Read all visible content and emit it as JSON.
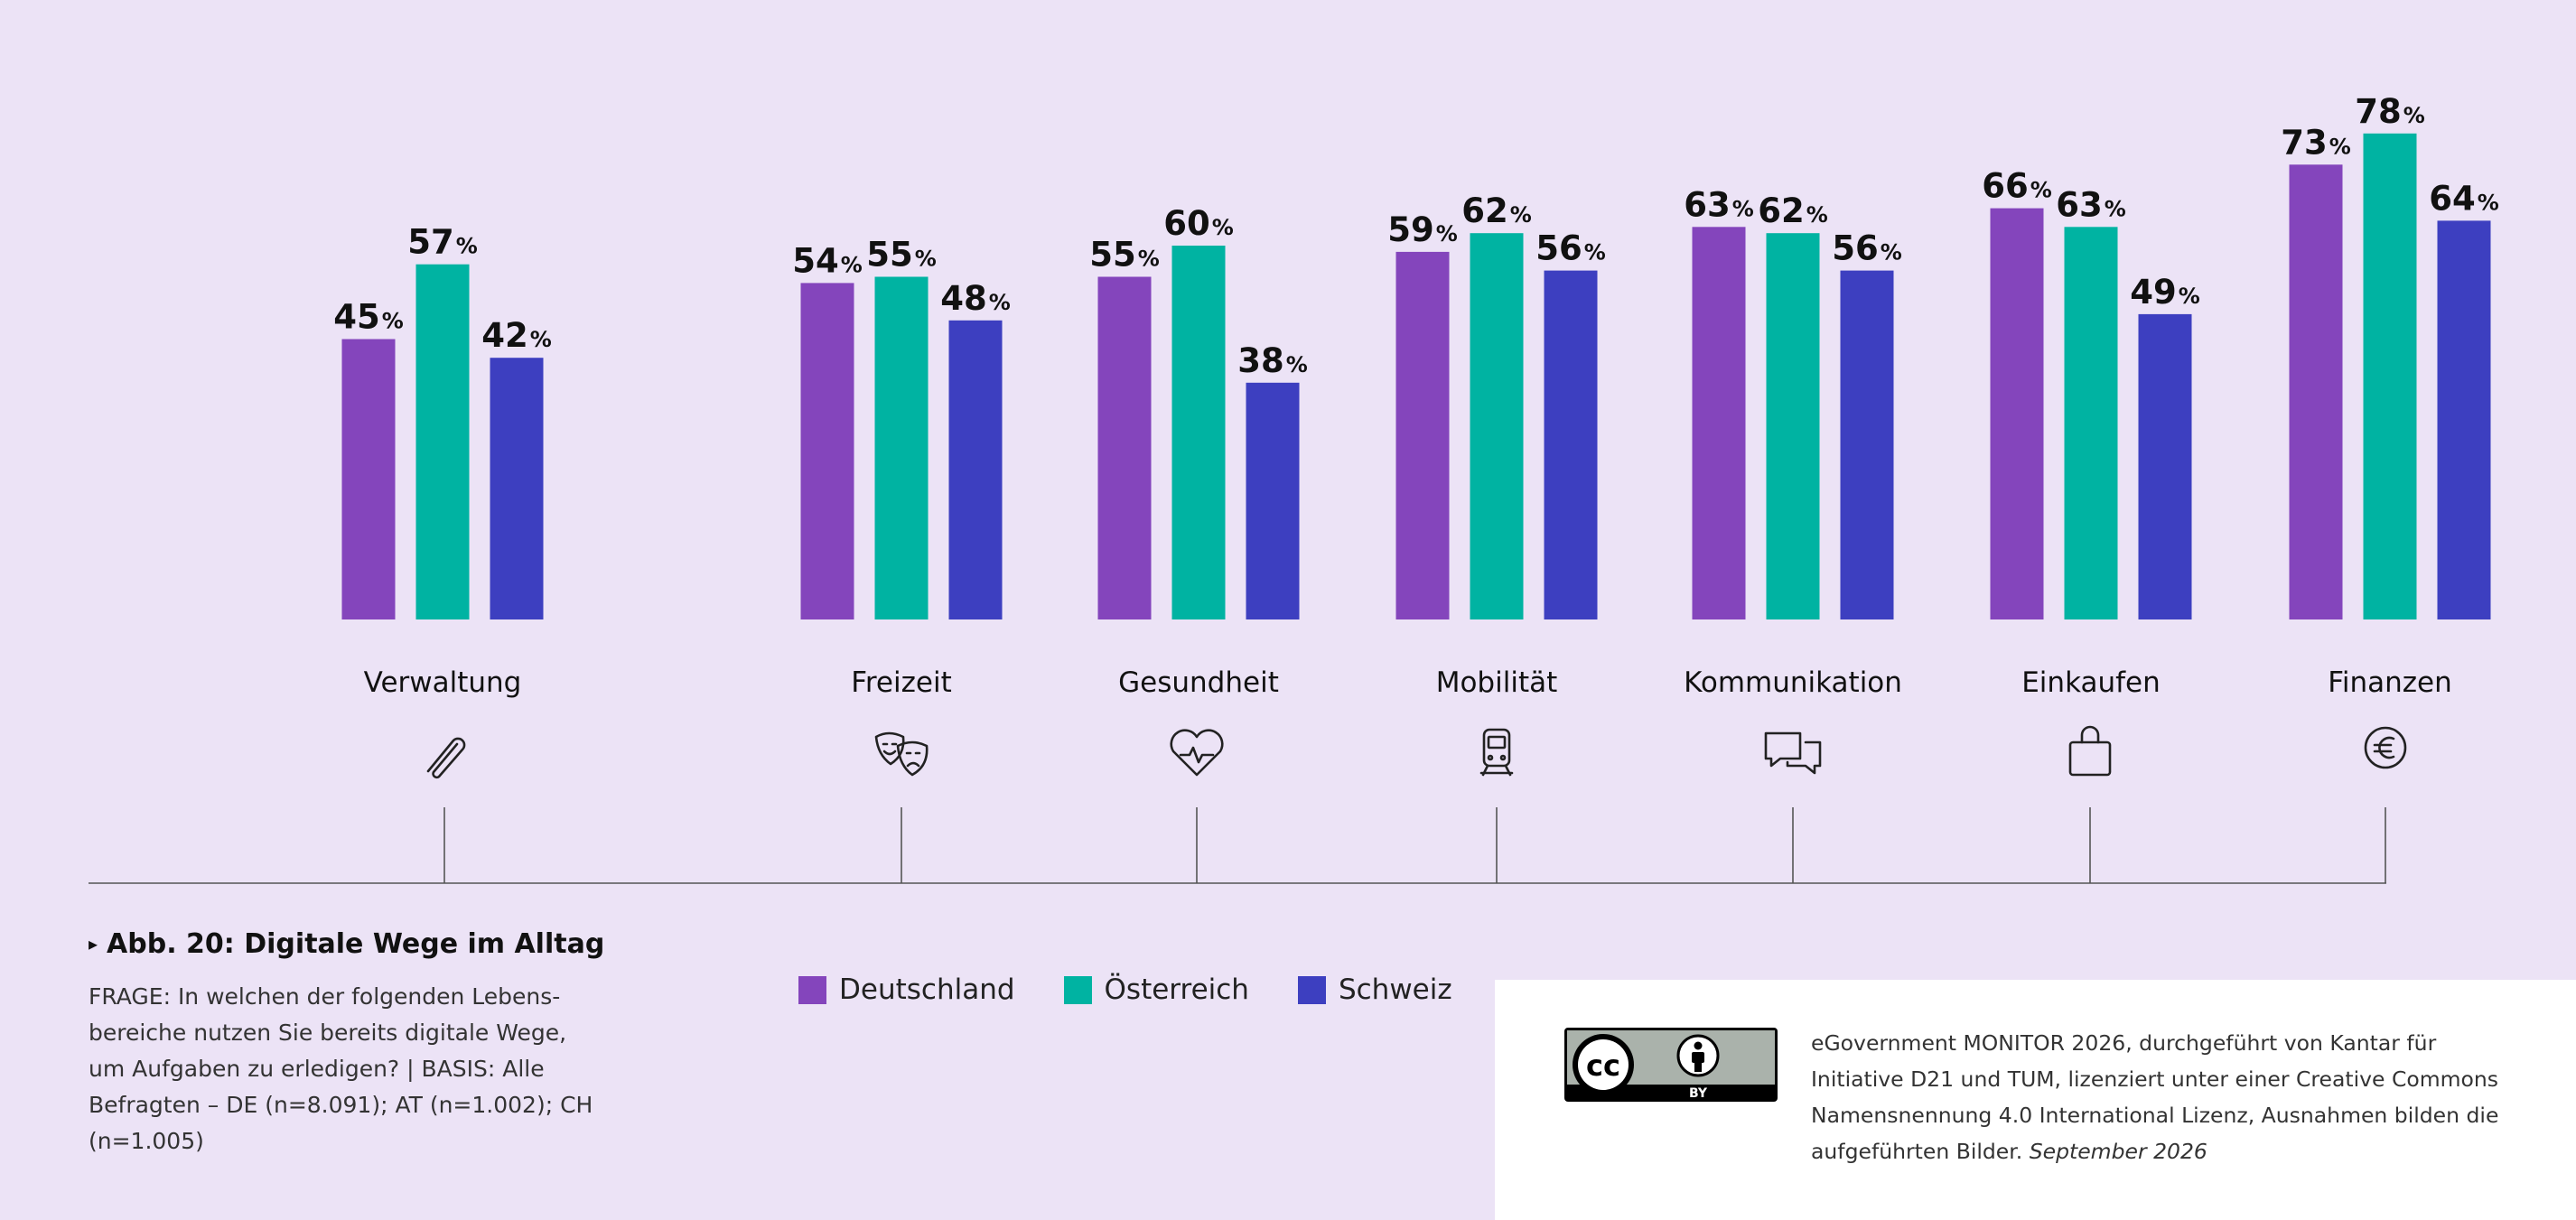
{
  "chart_data": {
    "type": "bar",
    "categories": [
      "Verwaltung",
      "Freizeit",
      "Gesundheit",
      "Mobilität",
      "Kommunikation",
      "Einkaufen",
      "Finanzen"
    ],
    "series": [
      {
        "name": "Deutschland",
        "color": "#8445bc",
        "values": [
          45,
          54,
          55,
          59,
          63,
          66,
          73
        ]
      },
      {
        "name": "Österreich",
        "color": "#00b3a2",
        "values": [
          57,
          55,
          60,
          62,
          62,
          63,
          78
        ]
      },
      {
        "name": "Schweiz",
        "color": "#3d3fc0",
        "values": [
          42,
          48,
          38,
          56,
          56,
          49,
          64
        ]
      }
    ],
    "value_suffix": "%",
    "ylim": [
      0,
      100
    ],
    "grid": false,
    "legend_position": "bottom",
    "category_icons": [
      "paperclip-icon",
      "theater-masks-icon",
      "heart-pulse-icon",
      "train-icon",
      "chat-bubbles-icon",
      "shopping-bag-icon",
      "euro-icon"
    ]
  },
  "figure": {
    "title": "Abb. 20: Digitale Wege im Alltag",
    "question": "FRAGE: In welchen der folgenden Lebens­bereiche nutzen Sie bereits digitale Wege, um Aufgaben zu erledigen? | BASIS: Alle Befragten – DE (n=8.091); AT (n=1.002); CH (n=1.005)"
  },
  "license": {
    "badge_text": "cc",
    "badge_sub": "BY",
    "text": "eGovernment MONITOR 2026, durchgeführt von Kantar für Initiative D21 und TUM, lizenziert unter einer Creative Commons Namensnennung 4.0 International Lizenz, Ausnahmen bilden die aufgeführten Bilder.",
    "date": "September 2026"
  },
  "colors": {
    "background": "#ece3f6",
    "text": "#111111",
    "axis_line": "#555555"
  }
}
